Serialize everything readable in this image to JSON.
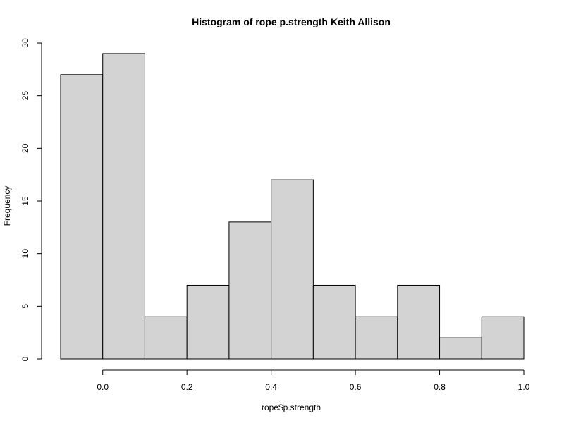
{
  "chart_data": {
    "type": "bar",
    "title": "Histogram of rope p.strength Keith Allison",
    "xlabel": "rope$p.strength",
    "ylabel": "Frequency",
    "bins": [
      {
        "x0": -0.1,
        "x1": 0.0,
        "count": 27
      },
      {
        "x0": 0.0,
        "x1": 0.1,
        "count": 29
      },
      {
        "x0": 0.1,
        "x1": 0.2,
        "count": 4
      },
      {
        "x0": 0.2,
        "x1": 0.3,
        "count": 7
      },
      {
        "x0": 0.3,
        "x1": 0.4,
        "count": 13
      },
      {
        "x0": 0.4,
        "x1": 0.5,
        "count": 17
      },
      {
        "x0": 0.5,
        "x1": 0.6,
        "count": 7
      },
      {
        "x0": 0.6,
        "x1": 0.7,
        "count": 4
      },
      {
        "x0": 0.7,
        "x1": 0.8,
        "count": 7
      },
      {
        "x0": 0.8,
        "x1": 0.9,
        "count": 2
      },
      {
        "x0": 0.9,
        "x1": 1.0,
        "count": 4
      }
    ],
    "x_ticks": [
      0.0,
      0.2,
      0.4,
      0.6,
      0.8,
      1.0
    ],
    "x_tick_labels": [
      "0.0",
      "0.2",
      "0.4",
      "0.6",
      "0.8",
      "1.0"
    ],
    "y_ticks": [
      0,
      5,
      10,
      15,
      20,
      25,
      30
    ],
    "y_tick_labels": [
      "0",
      "5",
      "10",
      "15",
      "20",
      "25",
      "30"
    ],
    "xlim": [
      -0.1,
      1.0
    ],
    "ylim": [
      0,
      30
    ],
    "grid": false,
    "bar_color": "#d3d3d3",
    "edge_color": "#000000"
  }
}
